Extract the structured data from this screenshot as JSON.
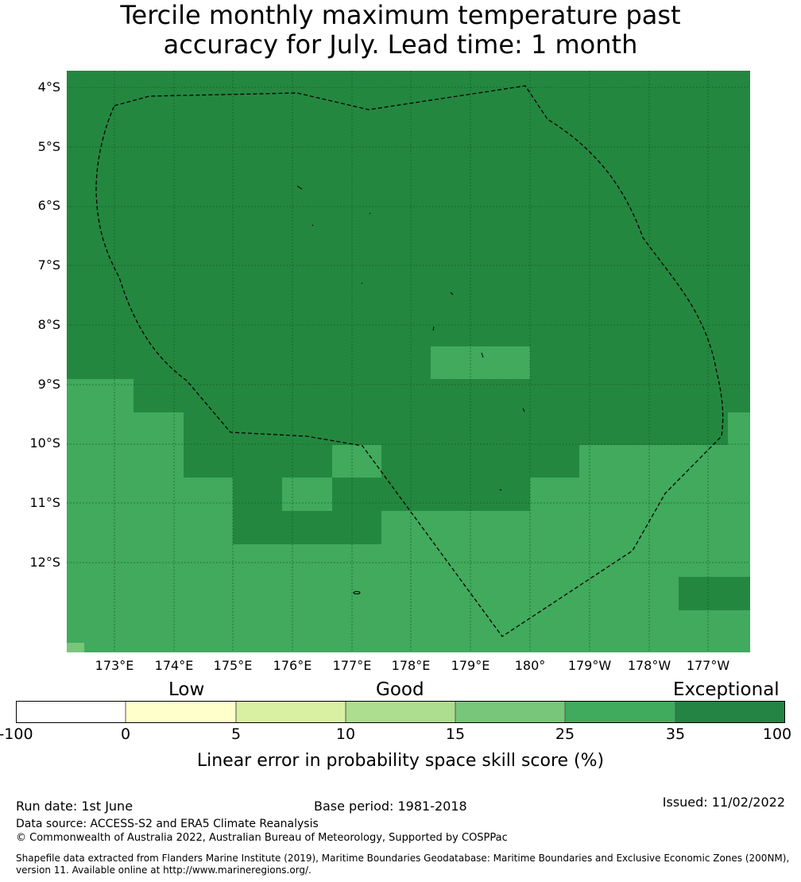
{
  "title": {
    "line1": "Tercile monthly maximum temperature past",
    "line2": "accuracy for July. Lead time: 1 month"
  },
  "map": {
    "latitude_labels": [
      "4°S",
      "5°S",
      "6°S",
      "7°S",
      "8°S",
      "9°S",
      "10°S",
      "11°S",
      "12°S"
    ],
    "longitude_labels": [
      "173°E",
      "174°E",
      "175°E",
      "176°E",
      "177°E",
      "178°E",
      "179°E",
      "180°",
      "179°W",
      "178°W",
      "177°W"
    ],
    "colors": {
      "exceptional": "#24873f",
      "skill_25_35": "#41aa5c",
      "skill_15_25": "#78c679",
      "gridline": "#0b4f1e",
      "boundary": "#000000"
    },
    "boundary_style": "dashed EEZ outline"
  },
  "legend": {
    "categories": [
      "Low",
      "Good",
      "Exceptional"
    ],
    "ticks": [
      "-100",
      "0",
      "5",
      "10",
      "15",
      "25",
      "35",
      "100"
    ],
    "bin_colors": [
      "#ffffff",
      "#ffffcc",
      "#d9f0a3",
      "#addd8e",
      "#78c679",
      "#41ab5d",
      "#238443"
    ],
    "title": "Linear error in probability space skill score (%)"
  },
  "footer": {
    "run_date": "Run date: 1st June",
    "base_period": "Base period: 1981-2018",
    "issued": "Issued: 11/02/2022",
    "data_source": "Data source: ACCESS-S2 and ERA5 Climate Reanalysis",
    "copyright": "© Commonwealth of Australia 2022, Australian Bureau of Meteorology, Supported by COSPPac",
    "shapefile_line1": "Shapefile data extracted from Flanders Marine Institute (2019), Maritime Boundaries Geodatabase: Maritime Boundaries and Exclusive Economic Zones (200NM),",
    "shapefile_line2": "version 11. Available online at http://www.marineregions.org/."
  }
}
